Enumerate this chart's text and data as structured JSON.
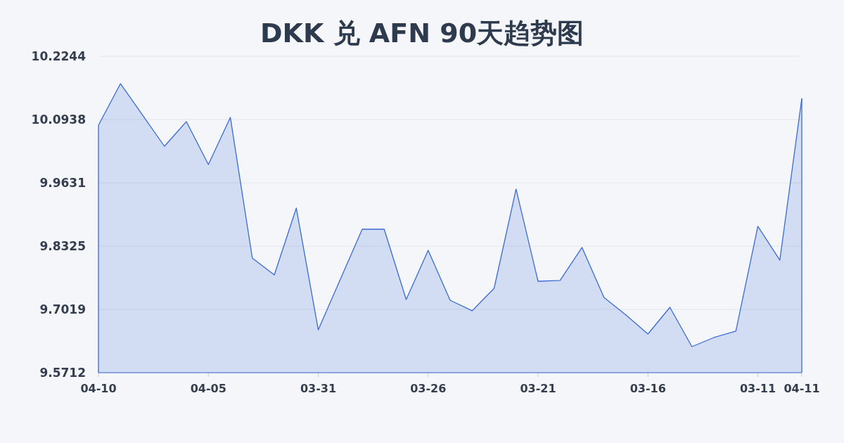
{
  "chart_data": {
    "type": "area",
    "title": "DKK 兑 AFN 90天趋势图",
    "categories": [
      "04-10",
      null,
      null,
      null,
      null,
      "04-05",
      null,
      null,
      null,
      null,
      "03-31",
      null,
      null,
      null,
      null,
      "03-26",
      null,
      null,
      null,
      null,
      "03-21",
      null,
      null,
      null,
      null,
      "03-16",
      null,
      null,
      null,
      null,
      "03-11",
      null,
      "04-11"
    ],
    "values": [
      10.0822,
      10.1678,
      10.1032,
      10.0386,
      10.0895,
      10.0009,
      10.0982,
      9.8078,
      9.773,
      9.9109,
      9.6598,
      9.7636,
      9.8673,
      9.8673,
      9.7222,
      9.8238,
      9.7207,
      9.699,
      9.7454,
      9.9501,
      9.7599,
      9.7614,
      9.8296,
      9.7265,
      9.6902,
      9.651,
      9.7062,
      9.6249,
      9.6438,
      9.6569,
      9.8732,
      9.8035,
      10.1374
    ],
    "color": "#3a6bd4",
    "ylim": [
      9.5712,
      10.2244
    ],
    "yticks": [
      9.5712,
      9.7019,
      9.8325,
      9.9631,
      10.0938,
      10.2244
    ],
    "grid": "y"
  }
}
